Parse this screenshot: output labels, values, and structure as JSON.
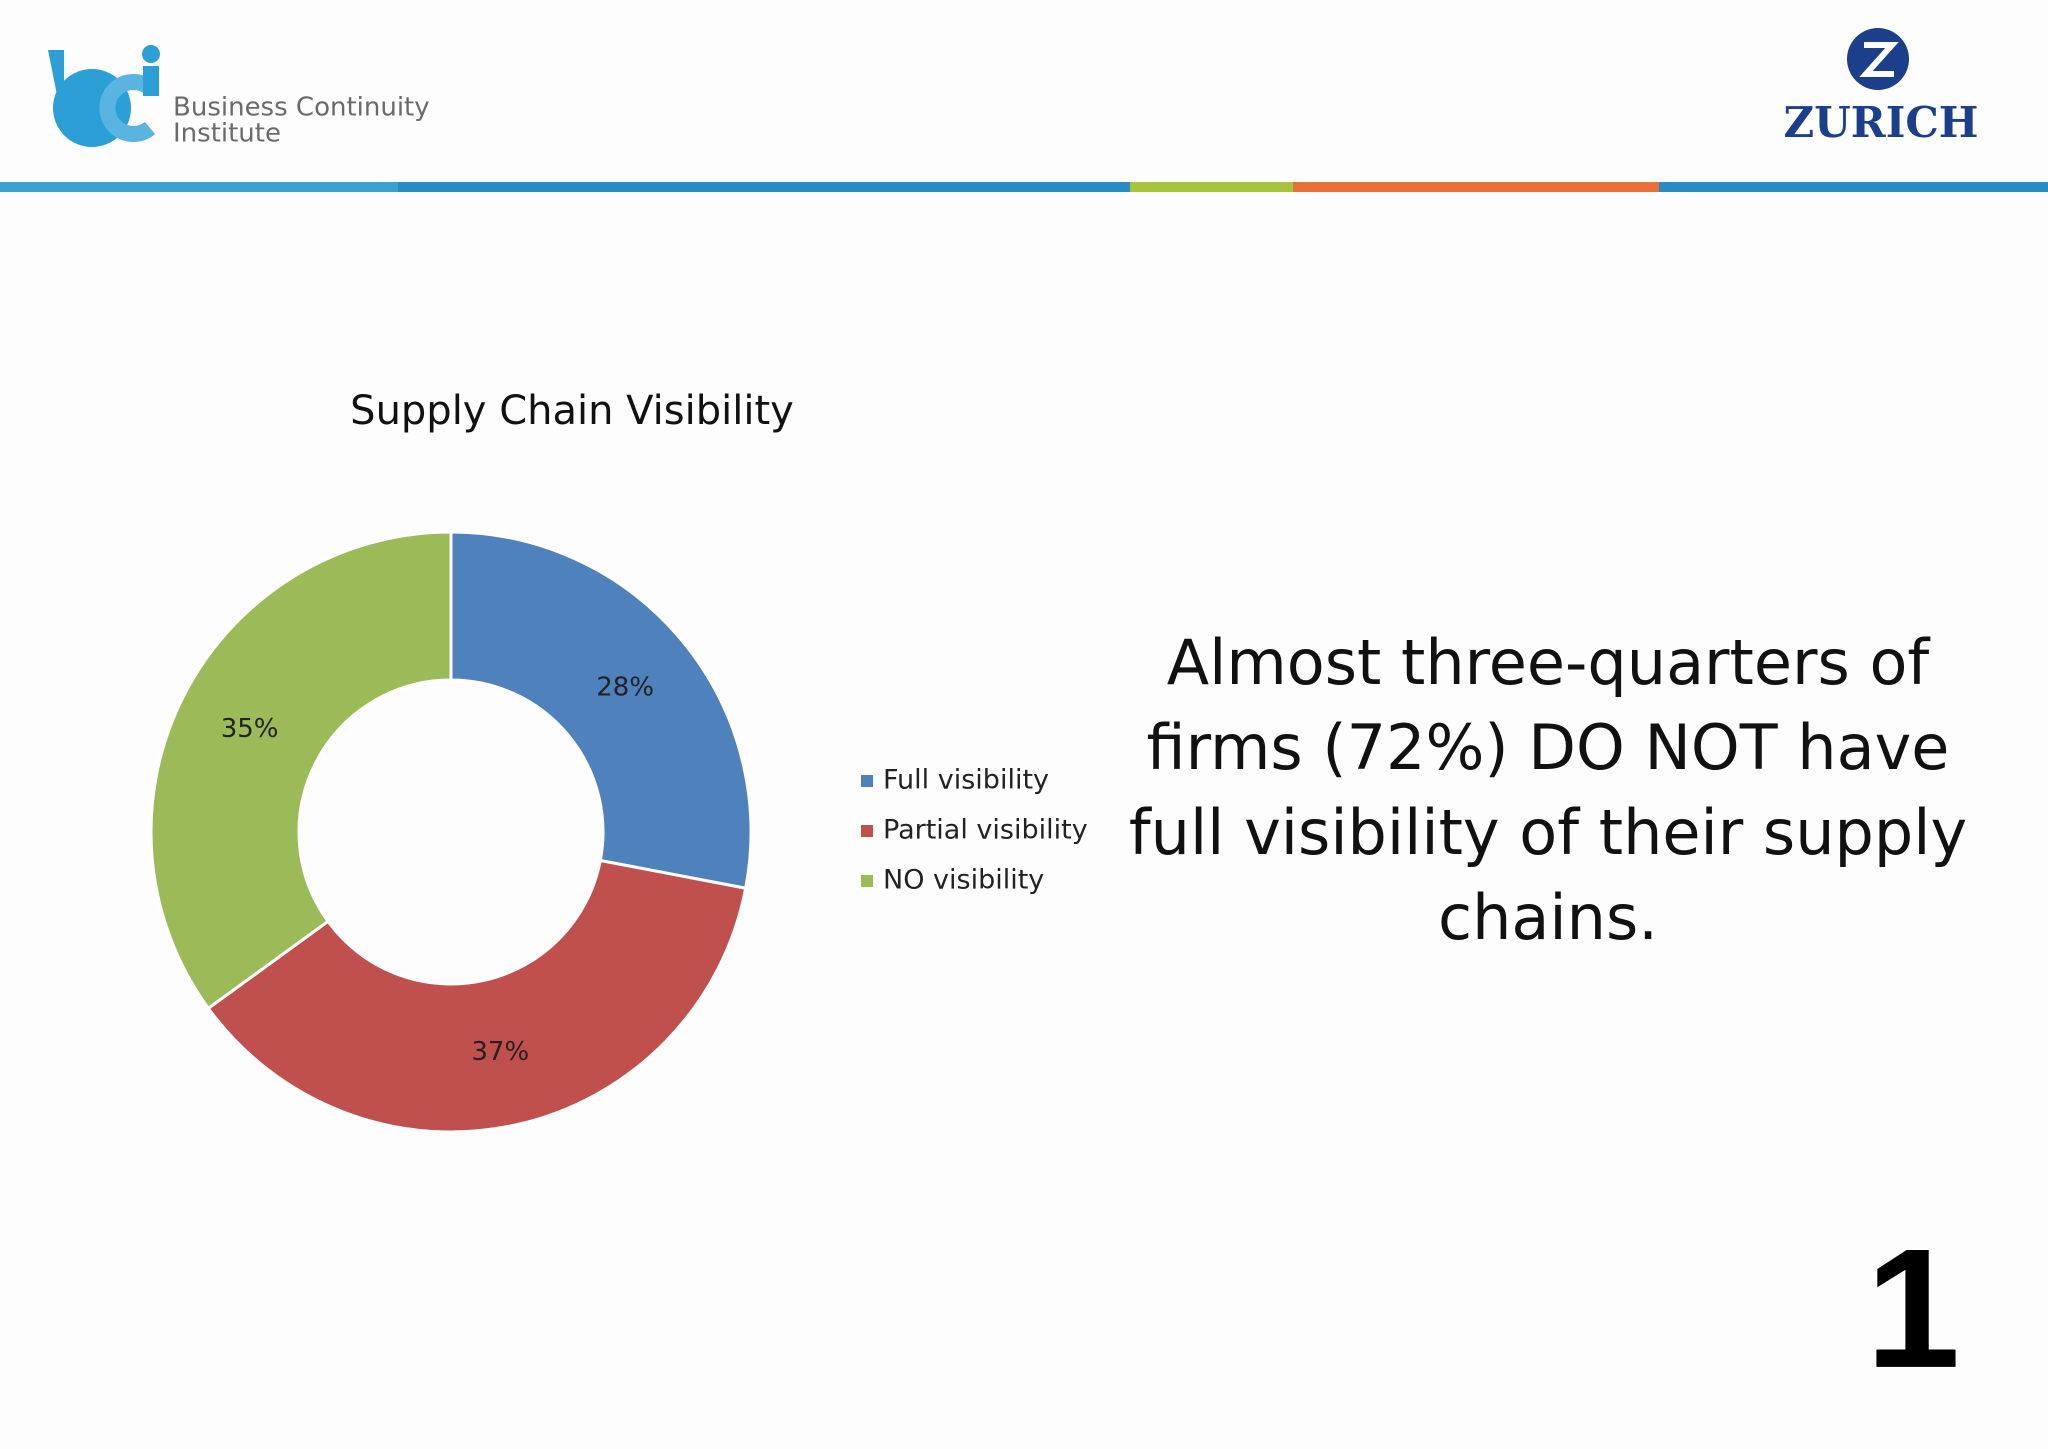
{
  "header": {
    "logo_left_line1": "Business Continuity",
    "logo_left_line2": "Institute",
    "logo_right": "ZURICH"
  },
  "chart_data": {
    "type": "pie",
    "donut": true,
    "title": "Supply Chain Visibility",
    "categories": [
      "Full visibility",
      "Partial visibility",
      "NO visibility"
    ],
    "values": [
      28,
      37,
      35
    ],
    "value_labels": [
      "28%",
      "37%",
      "35%"
    ],
    "colors": [
      "#4f81bd",
      "#c0504d",
      "#9bbb59"
    ],
    "legend": "right"
  },
  "statement": [
    "Almost three-quarters of",
    "firms (72%) DO NOT have",
    "full visibility of their supply",
    "chains."
  ],
  "page_number": "1"
}
